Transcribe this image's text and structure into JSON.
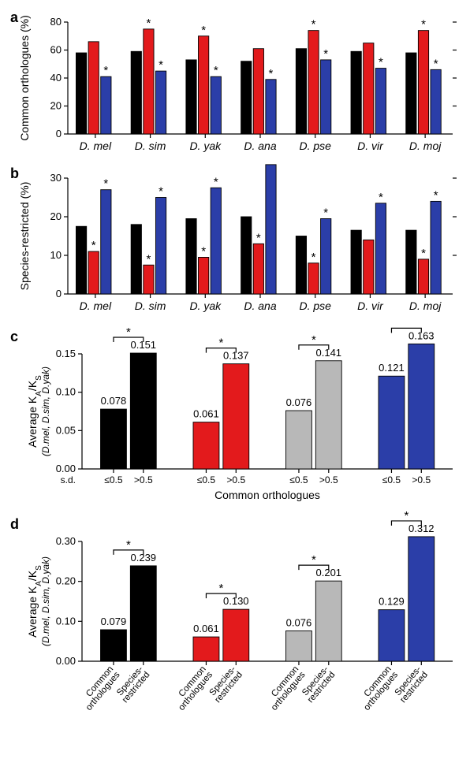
{
  "colors": {
    "black": "#000000",
    "red": "#e31a1c",
    "blue": "#2b3ea8",
    "grey": "#b8b8b8",
    "bg": "#ffffff"
  },
  "species": [
    "D. mel",
    "D. sim",
    "D. yak",
    "D. ana",
    "D. pse",
    "D. vir",
    "D. moj"
  ],
  "panel_a": {
    "letter": "a",
    "ylabel": "Common orthologues (%)",
    "ymin": 0,
    "ymax": 80,
    "ytick_step": 20,
    "series_colors": [
      "#000000",
      "#e31a1c",
      "#2b3ea8"
    ],
    "values": [
      [
        58,
        66,
        41
      ],
      [
        59,
        75,
        45
      ],
      [
        53,
        70,
        41
      ],
      [
        52,
        61,
        39
      ],
      [
        61,
        74,
        53
      ],
      [
        59,
        65,
        47
      ],
      [
        58,
        74,
        46
      ]
    ],
    "stars": [
      [
        false,
        false,
        true
      ],
      [
        false,
        true,
        true
      ],
      [
        false,
        true,
        true
      ],
      [
        false,
        false,
        true
      ],
      [
        false,
        true,
        true
      ],
      [
        false,
        false,
        true
      ],
      [
        false,
        true,
        true
      ]
    ]
  },
  "panel_b": {
    "letter": "b",
    "ylabel": "Species-restricted (%)",
    "ymin": 0,
    "ymax": 30,
    "ytick_step": 10,
    "series_colors": [
      "#000000",
      "#e31a1c",
      "#2b3ea8"
    ],
    "values": [
      [
        17.5,
        11,
        27
      ],
      [
        18,
        7.5,
        25
      ],
      [
        19.5,
        9.5,
        27.5
      ],
      [
        20,
        13,
        33.5
      ],
      [
        15,
        8,
        19.5
      ],
      [
        16.5,
        14,
        23.5
      ],
      [
        16.5,
        9,
        24
      ]
    ],
    "stars": [
      [
        false,
        true,
        true
      ],
      [
        false,
        true,
        true
      ],
      [
        false,
        true,
        true
      ],
      [
        false,
        true,
        true
      ],
      [
        false,
        true,
        true
      ],
      [
        false,
        false,
        true
      ],
      [
        false,
        true,
        true
      ]
    ]
  },
  "panel_c": {
    "letter": "c",
    "ylabel_line1": "Average K",
    "ylabel_A": "A",
    "ylabel_slashK": "/K",
    "ylabel_S": "S",
    "ylabel_sub": "(D.mel, D.sim, D.yak)",
    "xlabel_main": "Common orthologues",
    "xlabel_left": "s.d.",
    "ymin": 0,
    "ymax": 0.15,
    "ytick_step": 0.05,
    "groups": [
      {
        "color": "#000000",
        "v1": 0.078,
        "v2": 0.151,
        "l1": "≤0.5",
        "l2": ">0.5"
      },
      {
        "color": "#e31a1c",
        "v1": 0.061,
        "v2": 0.137,
        "l1": "≤0.5",
        "l2": ">0.5"
      },
      {
        "color": "#b8b8b8",
        "v1": 0.076,
        "v2": 0.141,
        "l1": "≤0.5",
        "l2": ">0.5"
      },
      {
        "color": "#2b3ea8",
        "v1": 0.121,
        "v2": 0.163,
        "l1": "≤0.5",
        "l2": ">0.5"
      }
    ]
  },
  "panel_d": {
    "letter": "d",
    "ylabel_line1": "Average K",
    "ylabel_A": "A",
    "ylabel_slashK": "/K",
    "ylabel_S": "S",
    "ylabel_sub": "(D.mel, D.sim, D.yak)",
    "xlab1": "Common orthologues",
    "xlab2": "Species-restricted",
    "ymin": 0,
    "ymax": 0.3,
    "ytick_step": 0.1,
    "groups": [
      {
        "color": "#000000",
        "v1": 0.079,
        "v2": 0.239
      },
      {
        "color": "#e31a1c",
        "v1": 0.061,
        "v2": 0.13
      },
      {
        "color": "#b8b8b8",
        "v1": 0.076,
        "v2": 0.201
      },
      {
        "color": "#2b3ea8",
        "v1": 0.129,
        "v2": 0.312
      }
    ]
  }
}
